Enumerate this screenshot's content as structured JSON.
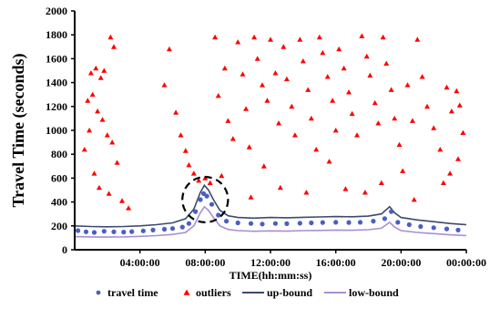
{
  "chart_data": {
    "type": "scatter",
    "title": "",
    "xlabel": "TIME(hh:mm:ss)",
    "ylabel": "Travel Time (seconds)",
    "x_unit": "hours_of_day",
    "xlim": [
      0,
      24
    ],
    "ylim": [
      0,
      2000
    ],
    "yticks": [
      0,
      200,
      400,
      600,
      800,
      1000,
      1200,
      1400,
      1600,
      1800,
      2000
    ],
    "xticks": [
      {
        "value": 4,
        "label": "04:00:00"
      },
      {
        "value": 8,
        "label": "08:00:00"
      },
      {
        "value": 12,
        "label": "12:00:00"
      },
      {
        "value": 16,
        "label": "16:00:00"
      },
      {
        "value": 20,
        "label": "20:00:00"
      },
      {
        "value": 24,
        "label": "00:00:00"
      }
    ],
    "grid": false,
    "legend_position": "bottom",
    "colors": {
      "travel_time": "#4a5fc1",
      "outliers": "#ff0000",
      "up_bound": "#3c4a6e",
      "low_bound": "#a98fd0"
    },
    "series": [
      {
        "name": "travel time",
        "kind": "markers",
        "marker": "dot",
        "points": [
          [
            0.2,
            160
          ],
          [
            0.7,
            150
          ],
          [
            1.2,
            145
          ],
          [
            1.8,
            155
          ],
          [
            2.4,
            150
          ],
          [
            3.0,
            148
          ],
          [
            3.5,
            152
          ],
          [
            4.2,
            158
          ],
          [
            4.8,
            165
          ],
          [
            5.5,
            172
          ],
          [
            6.0,
            178
          ],
          [
            6.6,
            190
          ],
          [
            7.0,
            220
          ],
          [
            7.4,
            320
          ],
          [
            7.7,
            420
          ],
          [
            7.9,
            470
          ],
          [
            8.1,
            450
          ],
          [
            8.4,
            380
          ],
          [
            8.8,
            290
          ],
          [
            9.3,
            240
          ],
          [
            10.0,
            225
          ],
          [
            10.8,
            220
          ],
          [
            11.5,
            215
          ],
          [
            12.3,
            220
          ],
          [
            13.0,
            218
          ],
          [
            13.8,
            222
          ],
          [
            14.5,
            225
          ],
          [
            15.2,
            228
          ],
          [
            16.0,
            230
          ],
          [
            16.8,
            228
          ],
          [
            17.5,
            230
          ],
          [
            18.3,
            240
          ],
          [
            19.0,
            260
          ],
          [
            19.4,
            320
          ],
          [
            19.8,
            230
          ],
          [
            20.5,
            210
          ],
          [
            21.2,
            195
          ],
          [
            22.0,
            185
          ],
          [
            22.8,
            175
          ],
          [
            23.5,
            165
          ]
        ]
      },
      {
        "name": "outliers",
        "kind": "markers",
        "marker": "triangle",
        "points": [
          [
            0.8,
            1250
          ],
          [
            1.0,
            1480
          ],
          [
            1.3,
            1520
          ],
          [
            1.6,
            1440
          ],
          [
            1.8,
            1500
          ],
          [
            2.2,
            1780
          ],
          [
            2.4,
            1700
          ],
          [
            1.1,
            1300
          ],
          [
            1.4,
            1160
          ],
          [
            1.7,
            1090
          ],
          [
            2.0,
            960
          ],
          [
            2.3,
            900
          ],
          [
            2.6,
            730
          ],
          [
            1.2,
            640
          ],
          [
            1.5,
            520
          ],
          [
            2.1,
            470
          ],
          [
            2.9,
            410
          ],
          [
            3.3,
            350
          ],
          [
            0.6,
            840
          ],
          [
            0.9,
            1000
          ],
          [
            5.8,
            1680
          ],
          [
            5.5,
            1380
          ],
          [
            6.2,
            1150
          ],
          [
            6.5,
            960
          ],
          [
            6.8,
            830
          ],
          [
            7.0,
            710
          ],
          [
            7.3,
            640
          ],
          [
            7.6,
            580
          ],
          [
            8.0,
            600
          ],
          [
            8.3,
            560
          ],
          [
            8.6,
            1780
          ],
          [
            8.8,
            1290
          ],
          [
            9.2,
            1520
          ],
          [
            9.4,
            1080
          ],
          [
            9.7,
            930
          ],
          [
            10.0,
            1740
          ],
          [
            10.3,
            1470
          ],
          [
            10.5,
            1180
          ],
          [
            10.7,
            860
          ],
          [
            11.0,
            1780
          ],
          [
            11.2,
            1600
          ],
          [
            11.5,
            1380
          ],
          [
            11.8,
            1250
          ],
          [
            12.0,
            1760
          ],
          [
            12.3,
            1480
          ],
          [
            12.5,
            1060
          ],
          [
            12.8,
            1700
          ],
          [
            13.0,
            1430
          ],
          [
            13.3,
            1200
          ],
          [
            13.5,
            960
          ],
          [
            13.8,
            1760
          ],
          [
            14.0,
            1580
          ],
          [
            14.3,
            1340
          ],
          [
            14.5,
            1100
          ],
          [
            14.8,
            840
          ],
          [
            15.0,
            1780
          ],
          [
            15.2,
            1650
          ],
          [
            15.5,
            1450
          ],
          [
            15.8,
            1250
          ],
          [
            16.0,
            1000
          ],
          [
            16.2,
            1680
          ],
          [
            16.5,
            1520
          ],
          [
            16.8,
            1320
          ],
          [
            17.0,
            1140
          ],
          [
            17.3,
            960
          ],
          [
            17.6,
            1790
          ],
          [
            17.9,
            1620
          ],
          [
            18.1,
            1460
          ],
          [
            18.4,
            1230
          ],
          [
            18.6,
            1060
          ],
          [
            18.9,
            1780
          ],
          [
            19.1,
            1560
          ],
          [
            19.4,
            1340
          ],
          [
            19.6,
            1100
          ],
          [
            19.9,
            880
          ],
          [
            20.1,
            660
          ],
          [
            20.4,
            1380
          ],
          [
            20.7,
            1080
          ],
          [
            21.0,
            1760
          ],
          [
            21.3,
            1450
          ],
          [
            21.6,
            1200
          ],
          [
            22.0,
            1020
          ],
          [
            22.4,
            840
          ],
          [
            22.8,
            1360
          ],
          [
            23.1,
            1160
          ],
          [
            23.4,
            1330
          ],
          [
            23.6,
            1210
          ],
          [
            23.8,
            980
          ],
          [
            23.5,
            760
          ],
          [
            23.0,
            640
          ],
          [
            22.6,
            560
          ],
          [
            14.2,
            480
          ],
          [
            12.6,
            520
          ],
          [
            10.8,
            440
          ],
          [
            16.6,
            510
          ],
          [
            18.8,
            560
          ],
          [
            9.0,
            620
          ],
          [
            11.6,
            700
          ],
          [
            15.6,
            740
          ],
          [
            17.8,
            480
          ],
          [
            20.8,
            420
          ]
        ]
      },
      {
        "name": "up-bound",
        "kind": "line",
        "points": [
          [
            0.0,
            200
          ],
          [
            1.0,
            195
          ],
          [
            2.0,
            192
          ],
          [
            3.0,
            195
          ],
          [
            4.0,
            200
          ],
          [
            5.0,
            210
          ],
          [
            6.0,
            225
          ],
          [
            6.8,
            260
          ],
          [
            7.3,
            340
          ],
          [
            7.7,
            480
          ],
          [
            7.95,
            540
          ],
          [
            8.2,
            500
          ],
          [
            8.5,
            420
          ],
          [
            8.9,
            330
          ],
          [
            9.4,
            285
          ],
          [
            10.0,
            270
          ],
          [
            11.0,
            265
          ],
          [
            12.0,
            270
          ],
          [
            13.0,
            268
          ],
          [
            14.0,
            272
          ],
          [
            15.0,
            275
          ],
          [
            16.0,
            278
          ],
          [
            17.0,
            276
          ],
          [
            18.0,
            282
          ],
          [
            18.8,
            300
          ],
          [
            19.3,
            360
          ],
          [
            19.6,
            310
          ],
          [
            20.0,
            270
          ],
          [
            21.0,
            250
          ],
          [
            22.0,
            235
          ],
          [
            23.0,
            220
          ],
          [
            24.0,
            210
          ]
        ]
      },
      {
        "name": "low-bound",
        "kind": "line",
        "points": [
          [
            0.0,
            110
          ],
          [
            1.0,
            108
          ],
          [
            2.0,
            106
          ],
          [
            3.0,
            108
          ],
          [
            4.0,
            112
          ],
          [
            5.0,
            118
          ],
          [
            6.0,
            128
          ],
          [
            6.8,
            145
          ],
          [
            7.3,
            200
          ],
          [
            7.7,
            310
          ],
          [
            7.95,
            360
          ],
          [
            8.2,
            330
          ],
          [
            8.5,
            270
          ],
          [
            8.9,
            200
          ],
          [
            9.4,
            170
          ],
          [
            10.0,
            160
          ],
          [
            11.0,
            155
          ],
          [
            12.0,
            158
          ],
          [
            13.0,
            156
          ],
          [
            14.0,
            160
          ],
          [
            15.0,
            162
          ],
          [
            16.0,
            165
          ],
          [
            17.0,
            163
          ],
          [
            18.0,
            168
          ],
          [
            18.8,
            180
          ],
          [
            19.3,
            230
          ],
          [
            19.6,
            190
          ],
          [
            20.0,
            160
          ],
          [
            21.0,
            145
          ],
          [
            22.0,
            135
          ],
          [
            23.0,
            125
          ],
          [
            24.0,
            118
          ]
        ]
      }
    ],
    "annotations": [
      {
        "type": "dashed-circle",
        "center": [
          8.0,
          420
        ],
        "radius_x_hours": 1.4,
        "radius_y_seconds": 190
      }
    ]
  }
}
